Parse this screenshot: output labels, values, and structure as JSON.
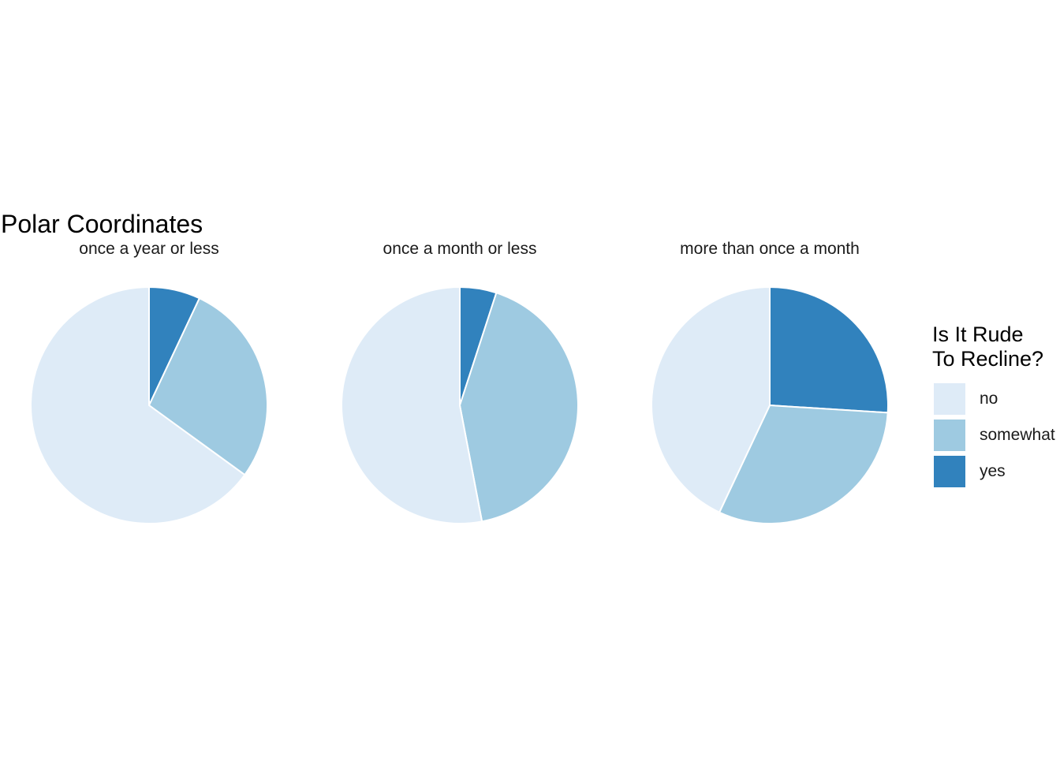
{
  "chart_data": {
    "type": "pie",
    "title": "Polar Coordinates",
    "facet_by": "frequency",
    "categories": [
      "no",
      "somewhat",
      "yes"
    ],
    "colors": {
      "no": "#deebf7",
      "somewhat": "#9ecae1",
      "yes": "#3182bd"
    },
    "slice_border_color": "#ffffff",
    "facets": [
      {
        "label": "once a year or less",
        "values": {
          "yes": 0.07,
          "somewhat": 0.28,
          "no": 0.65
        }
      },
      {
        "label": "once a month or less",
        "values": {
          "yes": 0.05,
          "somewhat": 0.42,
          "no": 0.53
        }
      },
      {
        "label": "more than once a month",
        "values": {
          "yes": 0.26,
          "somewhat": 0.31,
          "no": 0.43
        }
      }
    ],
    "slice_order_clockwise_from_top": [
      "yes",
      "somewhat",
      "no"
    ],
    "legend": {
      "title_lines": [
        "Is It Rude",
        "To Recline?"
      ],
      "placement": "right"
    },
    "grid": false,
    "axes_visible": false
  }
}
